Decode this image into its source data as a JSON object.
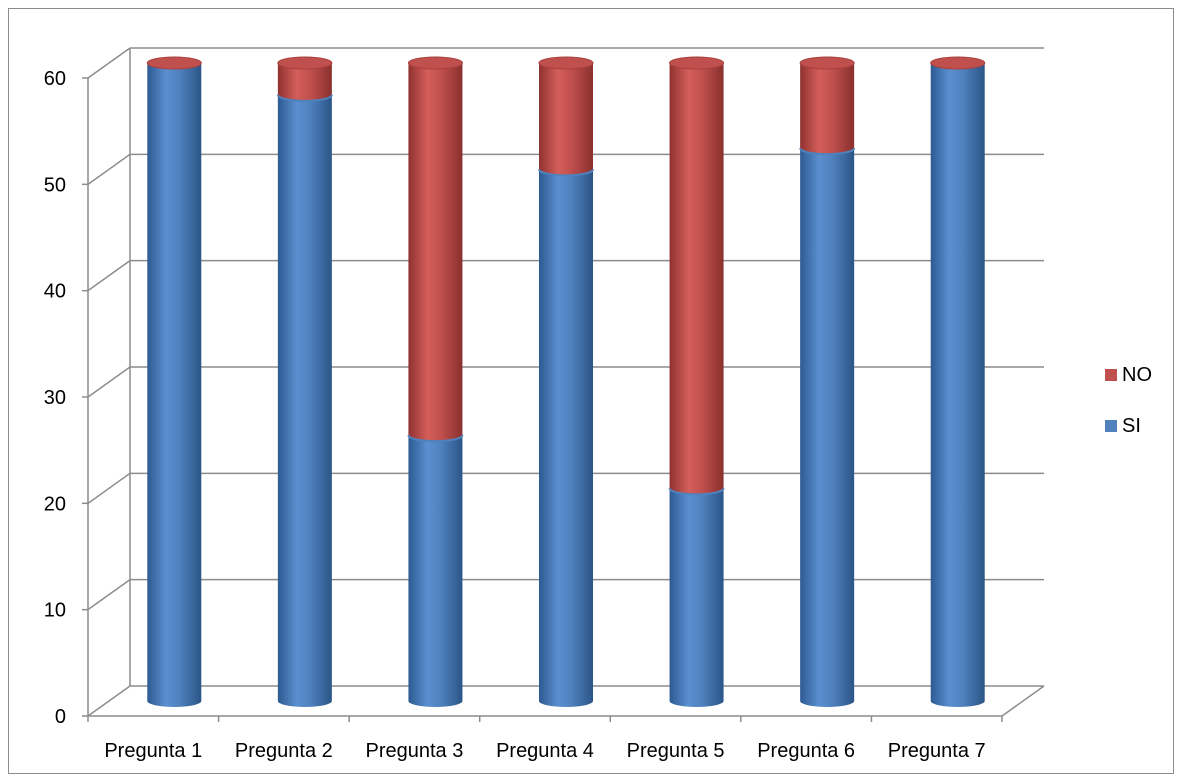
{
  "chart_data": {
    "type": "bar",
    "stacked": true,
    "style": "3d-cylinder",
    "title": "",
    "xlabel": "",
    "ylabel": "",
    "categories": [
      "Pregunta 1",
      "Pregunta 2",
      "Pregunta 3",
      "Pregunta 4",
      "Pregunta 5",
      "Pregunta 6",
      "Pregunta 7"
    ],
    "series": [
      {
        "name": "SI",
        "color": "#4f81bd",
        "values": [
          60,
          57,
          25,
          50,
          20,
          52,
          60
        ]
      },
      {
        "name": "NO",
        "color": "#c0504d",
        "values": [
          0,
          3,
          35,
          10,
          40,
          8,
          0
        ]
      }
    ],
    "ylim": [
      0,
      60
    ],
    "yticks": [
      "0",
      "10",
      "20",
      "30",
      "40",
      "50",
      "60"
    ],
    "grid": true,
    "legend": {
      "position": "right",
      "order": [
        "NO",
        "SI"
      ]
    }
  }
}
